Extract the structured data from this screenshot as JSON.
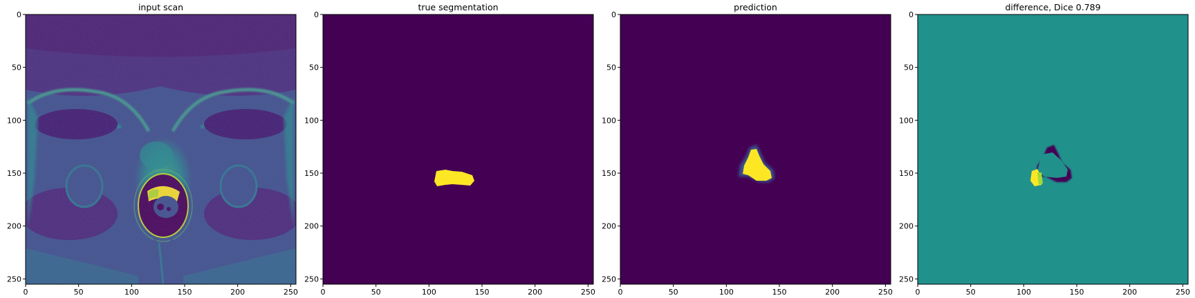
{
  "figure": {
    "colormap": "viridis",
    "colors": {
      "viridis_low": "#440154",
      "viridis_mid": "#21918c",
      "viridis_high": "#fde725"
    }
  },
  "chart_data": [
    {
      "type": "heatmap",
      "title": "input scan",
      "image": "prostate MRI slice",
      "x": {
        "lim": [
          0,
          255
        ],
        "ticks": [
          0,
          50,
          100,
          150,
          200,
          250
        ]
      },
      "y": {
        "lim": [
          0,
          255
        ],
        "ticks": [
          0,
          50,
          100,
          150,
          200,
          250
        ],
        "inverted": true
      }
    },
    {
      "type": "heatmap",
      "title": "true segmentation",
      "values_range": [
        0,
        1
      ],
      "region": {
        "value": 1,
        "x_range": [
          106,
          143
        ],
        "y_range": [
          132,
          151
        ],
        "center": [
          124,
          144
        ]
      },
      "x": {
        "lim": [
          0,
          255
        ],
        "ticks": [
          0,
          50,
          100,
          150,
          200,
          250
        ]
      },
      "y": {
        "lim": [
          0,
          255
        ],
        "ticks": [
          0,
          50,
          100,
          150,
          200,
          250
        ],
        "inverted": true
      }
    },
    {
      "type": "heatmap",
      "title": "prediction",
      "values_range": [
        0,
        1
      ],
      "region": {
        "value": 1,
        "x_range": [
          112,
          143
        ],
        "y_range": [
          126,
          153
        ],
        "center": [
          129,
          143
        ]
      },
      "x": {
        "lim": [
          0,
          255
        ],
        "ticks": [
          0,
          50,
          100,
          150,
          200,
          250
        ]
      },
      "y": {
        "lim": [
          0,
          255
        ],
        "ticks": [
          0,
          50,
          100,
          150,
          200,
          250
        ],
        "inverted": true
      }
    },
    {
      "type": "heatmap",
      "title": "difference, Dice 0.789",
      "values_range": [
        -1,
        1
      ],
      "dice": 0.789,
      "x": {
        "lim": [
          0,
          255
        ],
        "ticks": [
          0,
          50,
          100,
          150,
          200,
          250
        ]
      },
      "y": {
        "lim": [
          0,
          255
        ],
        "ticks": [
          0,
          50,
          100,
          150,
          200,
          250
        ],
        "inverted": true
      }
    }
  ]
}
